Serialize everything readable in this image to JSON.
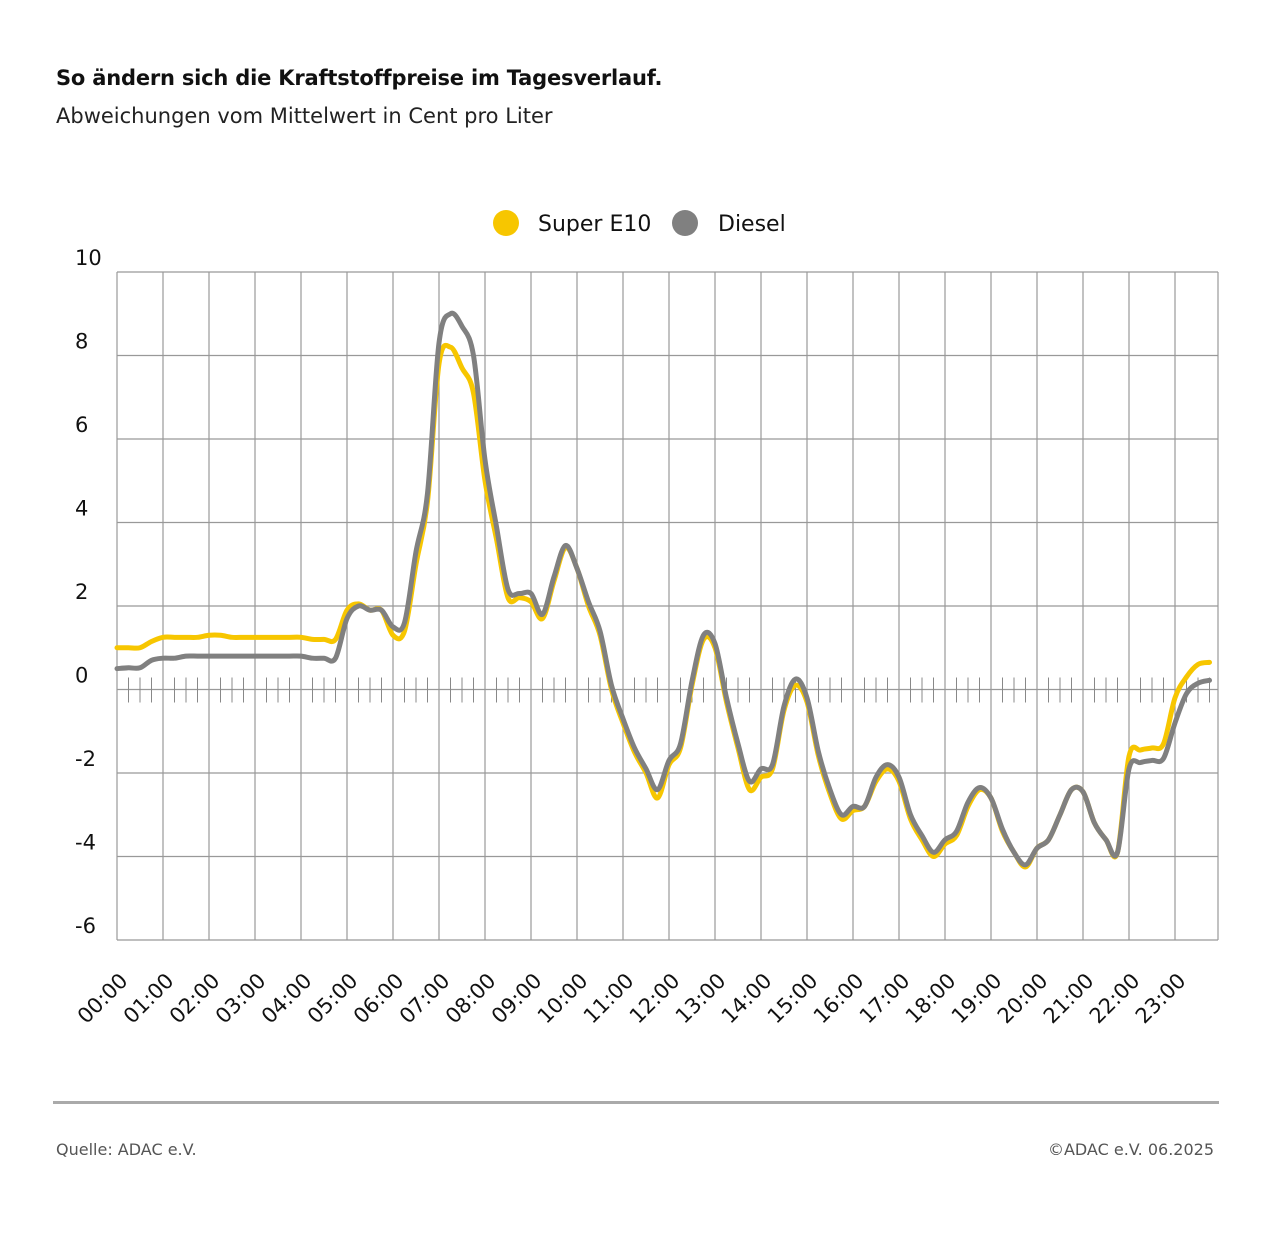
{
  "title": "So ändern sich die Kraftstoffpreise im Tagesverlauf.",
  "subtitle": "Abweichungen vom Mittelwert in Cent pro Liter",
  "footer": {
    "source": "Quelle: ADAC e.V.",
    "copyright": "©ADAC e.V.  06.2025"
  },
  "chart_data": {
    "type": "line",
    "title": "So ändern sich die Kraftstoffpreise im Tagesverlauf.",
    "subtitle": "Abweichungen vom Mittelwert in Cent pro Liter",
    "ylim": [
      -6,
      10
    ],
    "y_ticks": [
      "10",
      "8",
      "6",
      "4",
      "2",
      "0",
      "-2",
      "-4",
      "-6"
    ],
    "x_tick_labels": [
      "00:00",
      "01:00",
      "02:00",
      "03:00",
      "04:00",
      "05:00",
      "06:00",
      "07:00",
      "08:00",
      "09:00",
      "10:00",
      "11:00",
      "12:00",
      "13:00",
      "14:00",
      "15:00",
      "16:00",
      "17:00",
      "18:00",
      "19:00",
      "20:00",
      "21:00",
      "22:00",
      "23:00"
    ],
    "grid": true,
    "legend_position": "top-center",
    "x": [
      "00:00",
      "00:15",
      "00:30",
      "00:45",
      "01:00",
      "01:15",
      "01:30",
      "01:45",
      "02:00",
      "02:15",
      "02:30",
      "02:45",
      "03:00",
      "03:15",
      "03:30",
      "03:45",
      "04:00",
      "04:15",
      "04:30",
      "04:45",
      "05:00",
      "05:15",
      "05:30",
      "05:45",
      "06:00",
      "06:15",
      "06:30",
      "06:45",
      "07:00",
      "07:15",
      "07:30",
      "07:45",
      "08:00",
      "08:15",
      "08:30",
      "08:45",
      "09:00",
      "09:15",
      "09:30",
      "09:45",
      "10:00",
      "10:15",
      "10:30",
      "10:45",
      "11:00",
      "11:15",
      "11:30",
      "11:45",
      "12:00",
      "12:15",
      "12:30",
      "12:45",
      "13:00",
      "13:15",
      "13:30",
      "13:45",
      "14:00",
      "14:15",
      "14:30",
      "14:45",
      "15:00",
      "15:15",
      "15:30",
      "15:45",
      "16:00",
      "16:15",
      "16:30",
      "16:45",
      "17:00",
      "17:15",
      "17:30",
      "17:45",
      "18:00",
      "18:15",
      "18:30",
      "18:45",
      "19:00",
      "19:15",
      "19:30",
      "19:45",
      "20:00",
      "20:15",
      "20:30",
      "20:45",
      "21:00",
      "21:15",
      "21:30",
      "21:45",
      "22:00",
      "22:15",
      "22:30",
      "22:45",
      "23:00",
      "23:15",
      "23:30",
      "23:45"
    ],
    "series": [
      {
        "name": "Super E10",
        "color": "#F7C600",
        "values": [
          1.0,
          1.0,
          1.0,
          1.15,
          1.25,
          1.25,
          1.25,
          1.25,
          1.3,
          1.3,
          1.25,
          1.25,
          1.25,
          1.25,
          1.25,
          1.25,
          1.25,
          1.2,
          1.2,
          1.2,
          1.9,
          2.05,
          1.9,
          1.9,
          1.3,
          1.4,
          3.0,
          4.5,
          7.8,
          8.2,
          7.7,
          7.1,
          5.0,
          3.6,
          2.2,
          2.2,
          2.1,
          1.7,
          2.6,
          3.4,
          2.9,
          2.0,
          1.3,
          0.0,
          -0.8,
          -1.5,
          -2.0,
          -2.6,
          -1.8,
          -1.4,
          0.1,
          1.2,
          1.0,
          -0.3,
          -1.4,
          -2.4,
          -2.1,
          -1.9,
          -0.5,
          0.1,
          -0.3,
          -1.6,
          -2.5,
          -3.1,
          -2.9,
          -2.8,
          -2.2,
          -1.9,
          -2.2,
          -3.1,
          -3.6,
          -4.0,
          -3.7,
          -3.5,
          -2.8,
          -2.4,
          -2.6,
          -3.4,
          -3.9,
          -4.25,
          -3.8,
          -3.6,
          -3.0,
          -2.4,
          -2.45,
          -3.2,
          -3.6,
          -3.9,
          -1.6,
          -1.45,
          -1.4,
          -1.3,
          -0.2,
          0.3,
          0.6,
          0.65
        ]
      },
      {
        "name": "Diesel",
        "color": "#808080",
        "values": [
          0.5,
          0.52,
          0.52,
          0.7,
          0.75,
          0.75,
          0.8,
          0.8,
          0.8,
          0.8,
          0.8,
          0.8,
          0.8,
          0.8,
          0.8,
          0.8,
          0.8,
          0.75,
          0.75,
          0.75,
          1.7,
          2.0,
          1.9,
          1.9,
          1.5,
          1.6,
          3.3,
          4.7,
          8.3,
          9.0,
          8.7,
          8.0,
          5.5,
          3.9,
          2.4,
          2.3,
          2.3,
          1.8,
          2.7,
          3.45,
          2.9,
          2.1,
          1.4,
          0.1,
          -0.7,
          -1.4,
          -1.9,
          -2.4,
          -1.7,
          -1.3,
          0.2,
          1.3,
          1.1,
          -0.2,
          -1.3,
          -2.2,
          -1.9,
          -1.8,
          -0.4,
          0.25,
          -0.2,
          -1.5,
          -2.4,
          -3.0,
          -2.8,
          -2.8,
          -2.1,
          -1.8,
          -2.1,
          -3.0,
          -3.5,
          -3.9,
          -3.6,
          -3.4,
          -2.7,
          -2.35,
          -2.6,
          -3.35,
          -3.9,
          -4.2,
          -3.8,
          -3.6,
          -3.0,
          -2.4,
          -2.45,
          -3.2,
          -3.6,
          -3.9,
          -1.9,
          -1.75,
          -1.7,
          -1.65,
          -0.8,
          -0.1,
          0.15,
          0.22
        ]
      }
    ]
  }
}
